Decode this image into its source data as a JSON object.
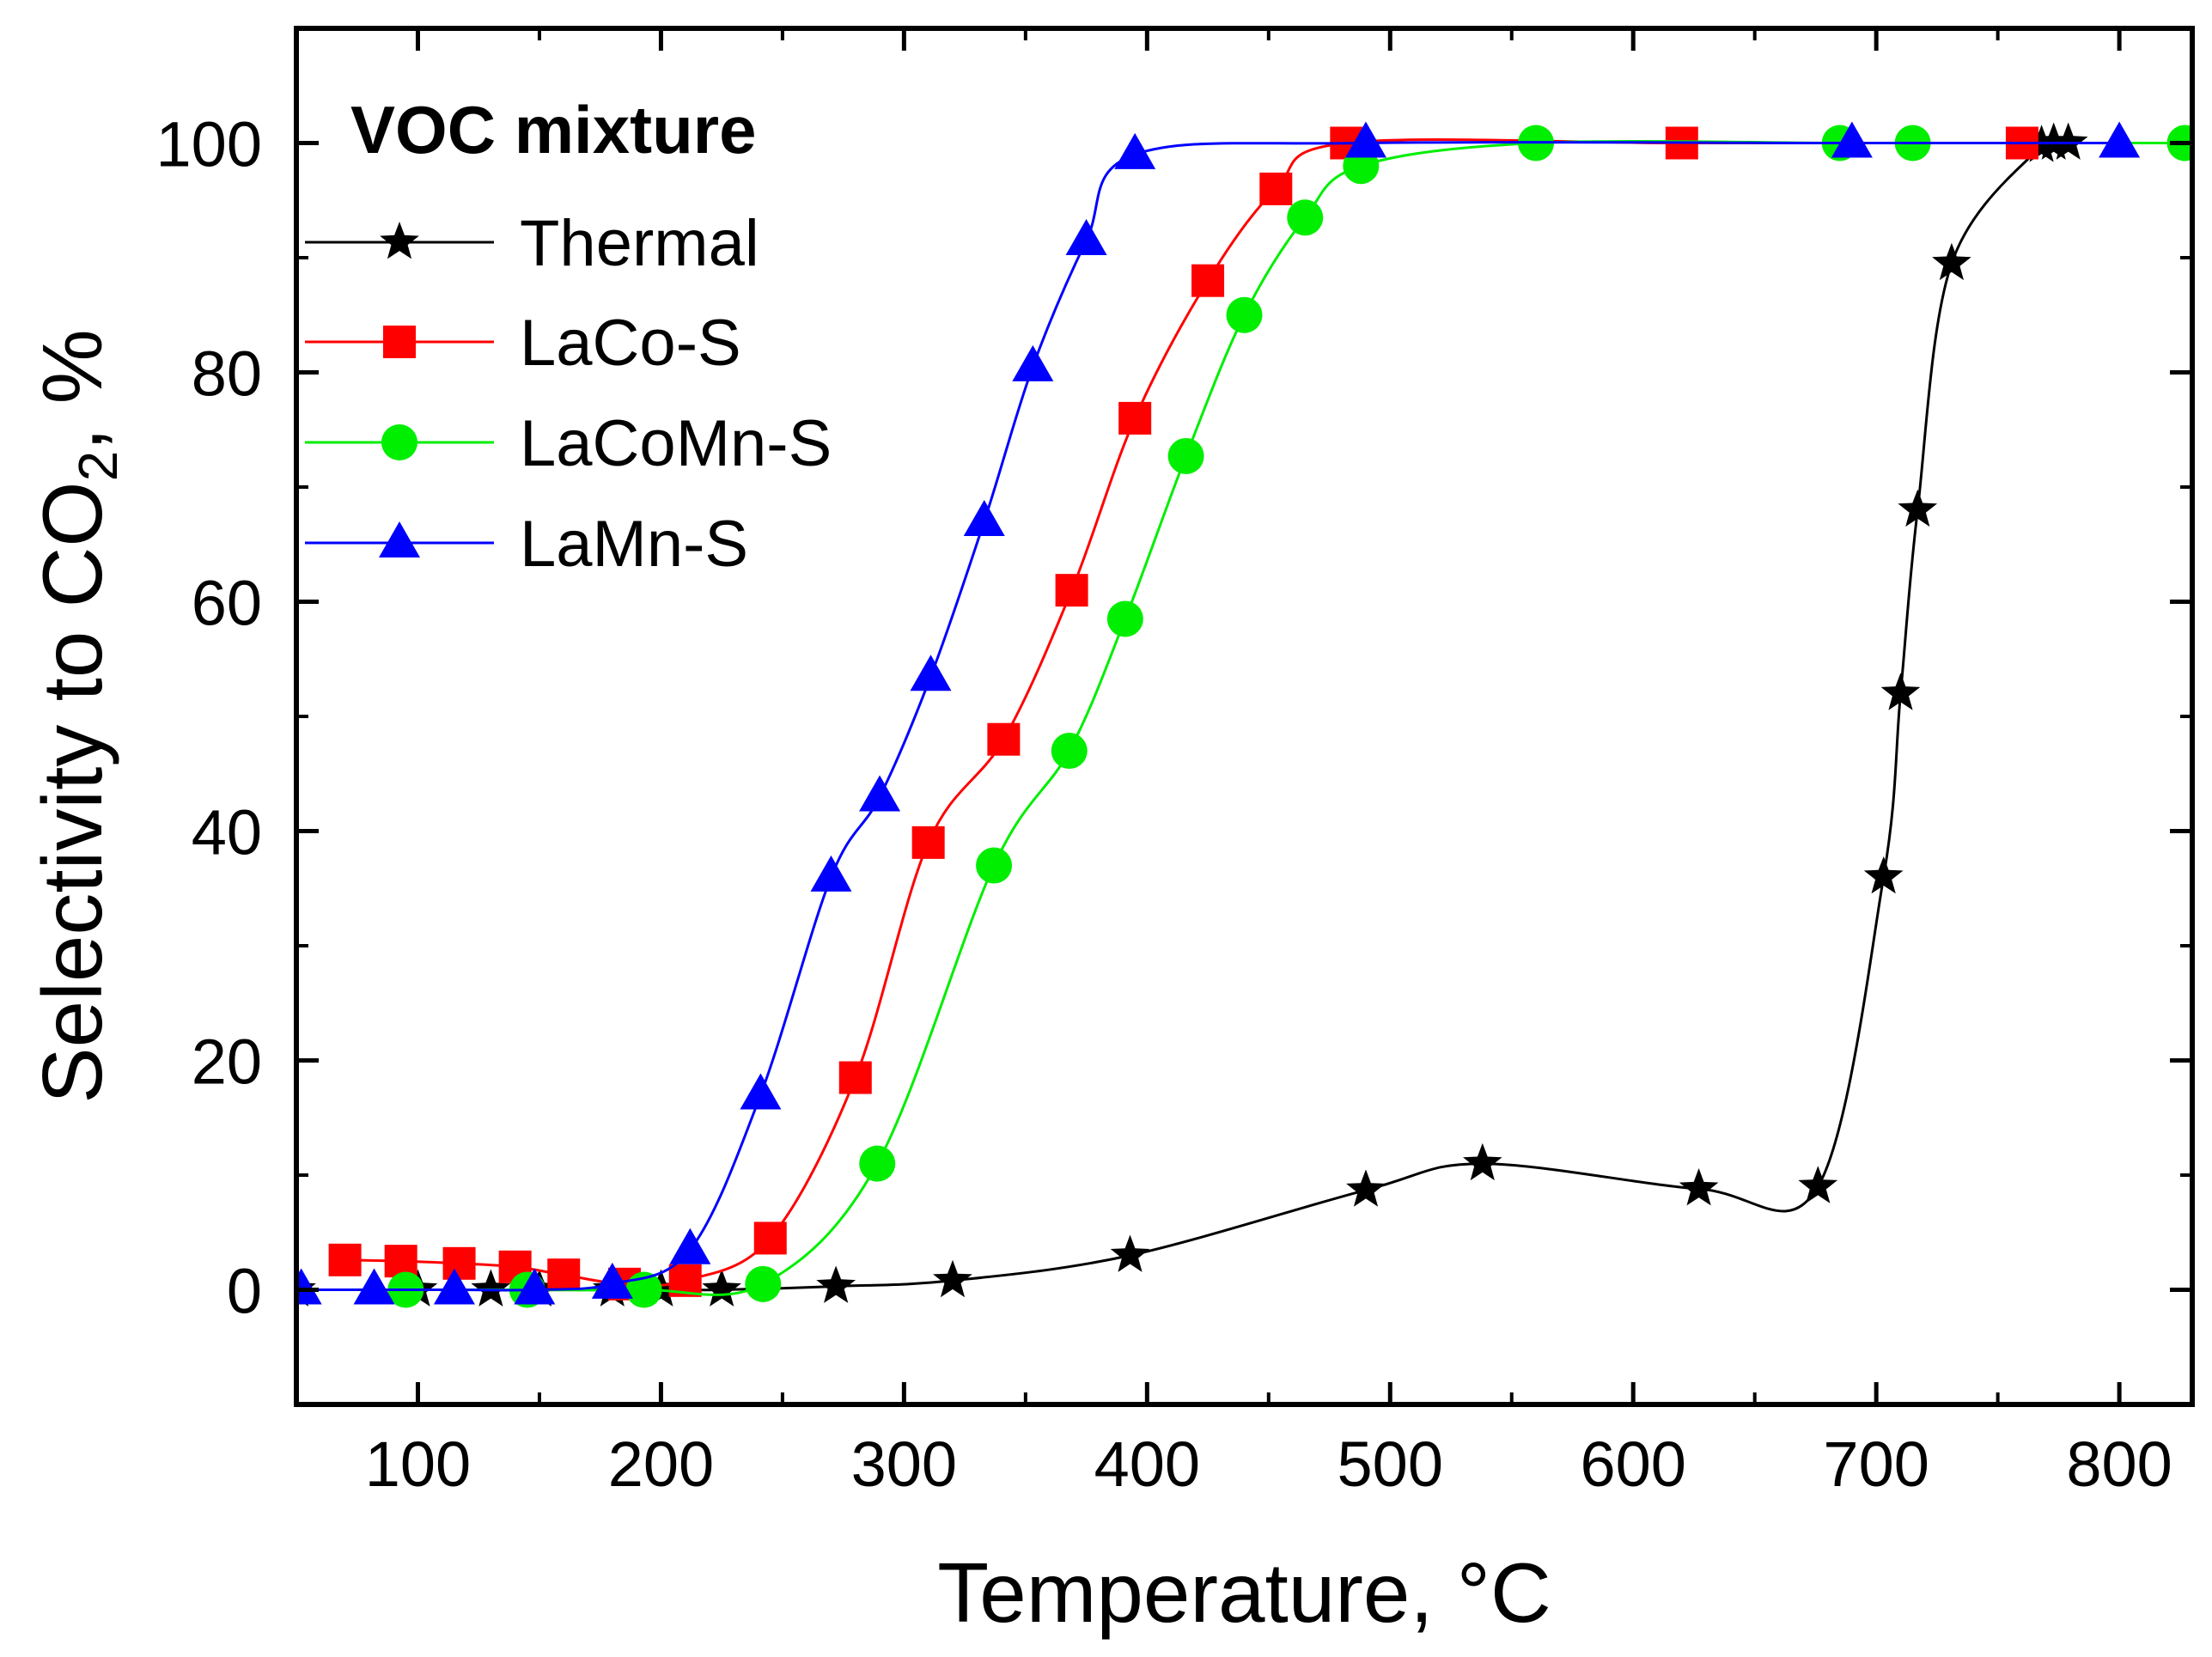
{
  "chart_data": {
    "type": "line",
    "title": "",
    "xlabel": "Temperature, °C",
    "ylabel_main": "Selectivity to CO",
    "ylabel_sub": "2",
    "ylabel_tail": ",  %",
    "xlim": [
      50,
      830
    ],
    "ylim": [
      -10,
      110
    ],
    "xticks": [
      100,
      200,
      300,
      400,
      500,
      600,
      700,
      800
    ],
    "yticks": [
      0,
      20,
      40,
      60,
      80,
      100
    ],
    "legend": {
      "title": "VOC mixture",
      "position": "top-left"
    },
    "series": [
      {
        "name": "Thermal",
        "color": "#000000",
        "marker": "star",
        "x": [
          50,
          100,
          130,
          150,
          180,
          200,
          225,
          272,
          320,
          393,
          490,
          538,
          627,
          676,
          703,
          710,
          717,
          731,
          768,
          773,
          779
        ],
        "y": [
          0,
          0,
          0,
          0,
          0,
          0,
          0,
          0.3,
          0.8,
          3,
          8.7,
          11,
          8.8,
          9,
          36,
          52,
          68,
          89.5,
          99.8,
          100,
          100
        ]
      },
      {
        "name": "LaCo-S",
        "color": "#ff0000",
        "marker": "square",
        "x": [
          70,
          93,
          117,
          140,
          160,
          185,
          210,
          245,
          280,
          310,
          341,
          369,
          395,
          425,
          453,
          482,
          620,
          760
        ],
        "y": [
          2.6,
          2.5,
          2.3,
          2,
          1.3,
          0.5,
          0.8,
          4.5,
          18.5,
          39,
          48,
          61,
          76,
          88,
          96,
          100,
          100,
          100
        ]
      },
      {
        "name": "LaCoMn-S",
        "color": "#00ee00",
        "marker": "circle",
        "x": [
          95,
          145,
          193,
          242,
          289,
          337,
          368,
          391,
          416,
          440,
          465,
          488,
          560,
          685,
          715,
          827
        ],
        "y": [
          0,
          0,
          0,
          0.5,
          11,
          37,
          47,
          58.5,
          72.7,
          85,
          93.5,
          98,
          100,
          100,
          100,
          100
        ]
      },
      {
        "name": "LaMn-S",
        "color": "#0000ff",
        "marker": "triangle",
        "x": [
          52,
          82,
          115,
          148,
          180,
          212,
          241,
          270,
          290,
          311,
          333,
          353,
          375,
          395,
          490,
          690,
          800
        ],
        "y": [
          0,
          0,
          0,
          0,
          0.5,
          3.5,
          17,
          36,
          43,
          53.5,
          67,
          80.5,
          91.5,
          99,
          100,
          100,
          100
        ]
      }
    ]
  }
}
